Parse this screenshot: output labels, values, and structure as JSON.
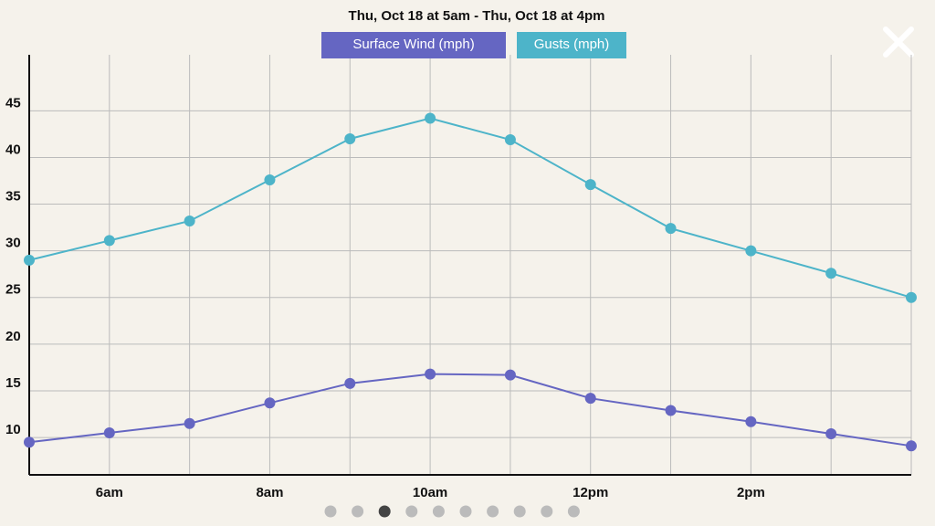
{
  "chart_data": {
    "type": "line",
    "title": "Thu, Oct 18 at 5am - Thu, Oct 18 at 4pm",
    "categories": [
      null,
      "6am",
      null,
      "8am",
      null,
      "10am",
      null,
      "12pm",
      null,
      "2pm",
      null,
      null
    ],
    "series": [
      {
        "name": "Surface Wind (mph)",
        "color": "#6566c2",
        "values": [
          9.5,
          10.5,
          11.5,
          13.7,
          15.8,
          16.8,
          16.7,
          14.2,
          12.9,
          11.7,
          10.4,
          9.1
        ]
      },
      {
        "name": "Gusts (mph)",
        "color": "#4db4c9",
        "values": [
          29,
          31.1,
          33.2,
          37.6,
          42,
          44.2,
          41.9,
          37.1,
          32.4,
          30,
          27.6,
          25
        ]
      }
    ],
    "ylim": [
      6,
      51
    ],
    "yticks": [
      10,
      15,
      20,
      25,
      30,
      35,
      40,
      45
    ],
    "grid": true
  }
}
